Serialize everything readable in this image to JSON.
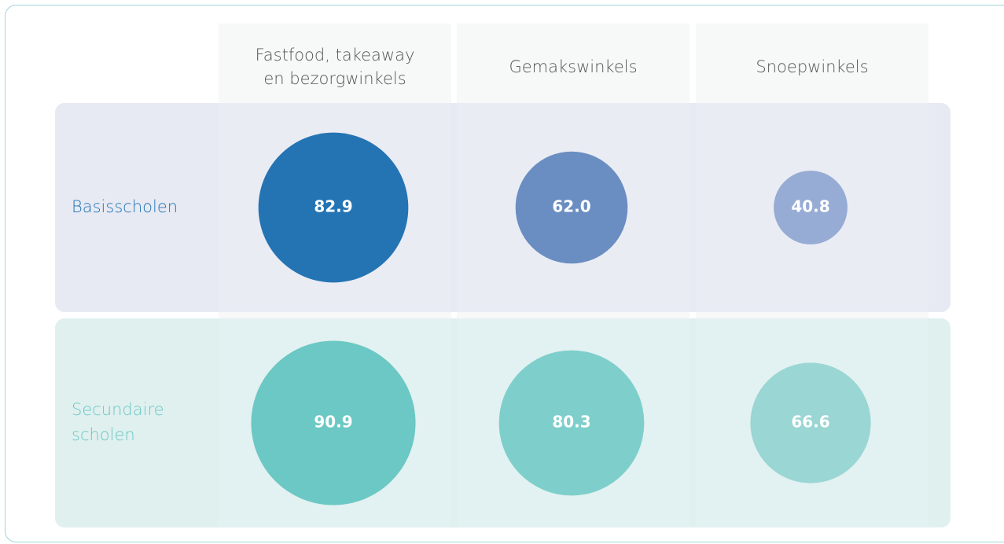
{
  "chart_data": {
    "type": "bubble_grid",
    "categories": [
      [
        "Fastfood, takeaway",
        "en bezorgwinkels"
      ],
      [
        "Gemakswinkels"
      ],
      [
        "Snoepwinkels"
      ]
    ],
    "series": [
      {
        "name": [
          "Basisscholen"
        ],
        "color": "#2474b3",
        "background": "#e7eaf3",
        "values": [
          82.9,
          62.0,
          40.8
        ],
        "value_labels": [
          "82.9",
          "62.0",
          "40.8"
        ],
        "colors": [
          "#2474b3",
          "#6a8ec1",
          "#97acd4"
        ]
      },
      {
        "name": [
          "Secundaire",
          "scholen"
        ],
        "color": "#6cc8c4",
        "background": "#dff0ef",
        "values": [
          90.9,
          80.3,
          66.6
        ],
        "value_labels": [
          "90.9",
          "80.3",
          "66.6"
        ],
        "colors": [
          "#6cc8c4",
          "#7ecfcb",
          "#9ad6d3"
        ]
      }
    ]
  }
}
